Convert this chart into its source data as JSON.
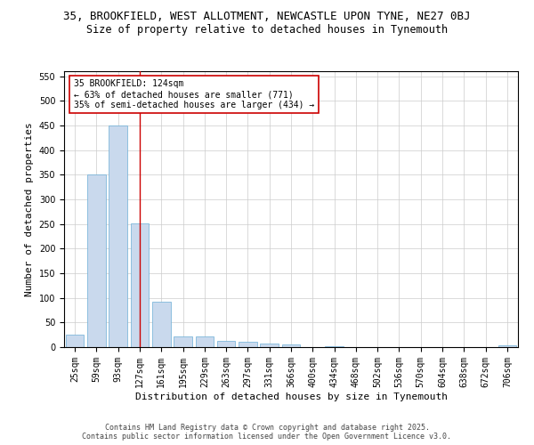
{
  "title_line1": "35, BROOKFIELD, WEST ALLOTMENT, NEWCASTLE UPON TYNE, NE27 0BJ",
  "title_line2": "Size of property relative to detached houses in Tynemouth",
  "xlabel": "Distribution of detached houses by size in Tynemouth",
  "ylabel": "Number of detached properties",
  "categories": [
    "25sqm",
    "59sqm",
    "93sqm",
    "127sqm",
    "161sqm",
    "195sqm",
    "229sqm",
    "263sqm",
    "297sqm",
    "331sqm",
    "366sqm",
    "400sqm",
    "434sqm",
    "468sqm",
    "502sqm",
    "536sqm",
    "570sqm",
    "604sqm",
    "638sqm",
    "672sqm",
    "706sqm"
  ],
  "values": [
    25,
    350,
    450,
    252,
    93,
    22,
    22,
    13,
    10,
    7,
    5,
    0,
    2,
    0,
    0,
    0,
    0,
    0,
    0,
    0,
    4
  ],
  "bar_color": "#c9d9ed",
  "bar_edge_color": "#6baed6",
  "highlight_bar_index": 3,
  "highlight_line_color": "#cc0000",
  "annotation_text": "35 BROOKFIELD: 124sqm\n← 63% of detached houses are smaller (771)\n35% of semi-detached houses are larger (434) →",
  "annotation_box_color": "#ffffff",
  "annotation_box_edge_color": "#cc0000",
  "ylim": [
    0,
    560
  ],
  "yticks": [
    0,
    50,
    100,
    150,
    200,
    250,
    300,
    350,
    400,
    450,
    500,
    550
  ],
  "background_color": "#ffffff",
  "grid_color": "#cccccc",
  "footer_text": "Contains HM Land Registry data © Crown copyright and database right 2025.\nContains public sector information licensed under the Open Government Licence v3.0.",
  "title_fontsize": 9,
  "subtitle_fontsize": 8.5,
  "axis_label_fontsize": 8,
  "tick_fontsize": 7,
  "annotation_fontsize": 7,
  "footer_fontsize": 6
}
